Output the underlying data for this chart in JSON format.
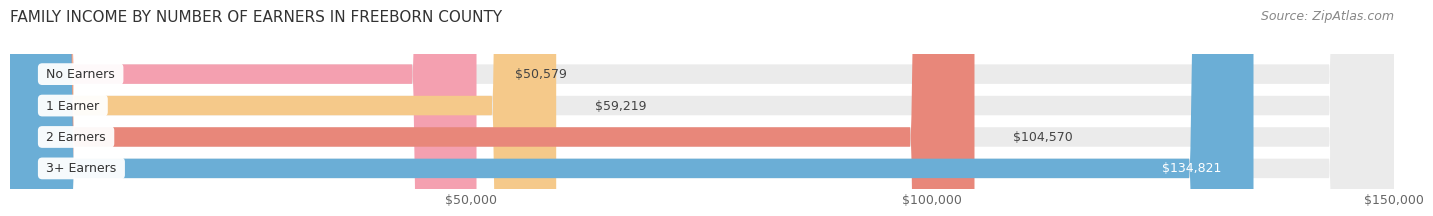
{
  "title": "FAMILY INCOME BY NUMBER OF EARNERS IN FREEBORN COUNTY",
  "source": "Source: ZipAtlas.com",
  "categories": [
    "No Earners",
    "1 Earner",
    "2 Earners",
    "3+ Earners"
  ],
  "values": [
    50579,
    59219,
    104570,
    134821
  ],
  "bar_colors": [
    "#f4a0b0",
    "#f5c98a",
    "#e8877a",
    "#6baed6"
  ],
  "bar_bg_color": "#ebebeb",
  "value_inside": [
    false,
    false,
    false,
    true
  ],
  "xlim": [
    0,
    150000
  ],
  "xticks": [
    50000,
    100000,
    150000
  ],
  "xtick_labels": [
    "$50,000",
    "$100,000",
    "$150,000"
  ],
  "background_color": "#ffffff",
  "bar_height": 0.62,
  "title_fontsize": 11,
  "source_fontsize": 9,
  "label_fontsize": 9,
  "value_fontsize": 9,
  "tick_fontsize": 9
}
